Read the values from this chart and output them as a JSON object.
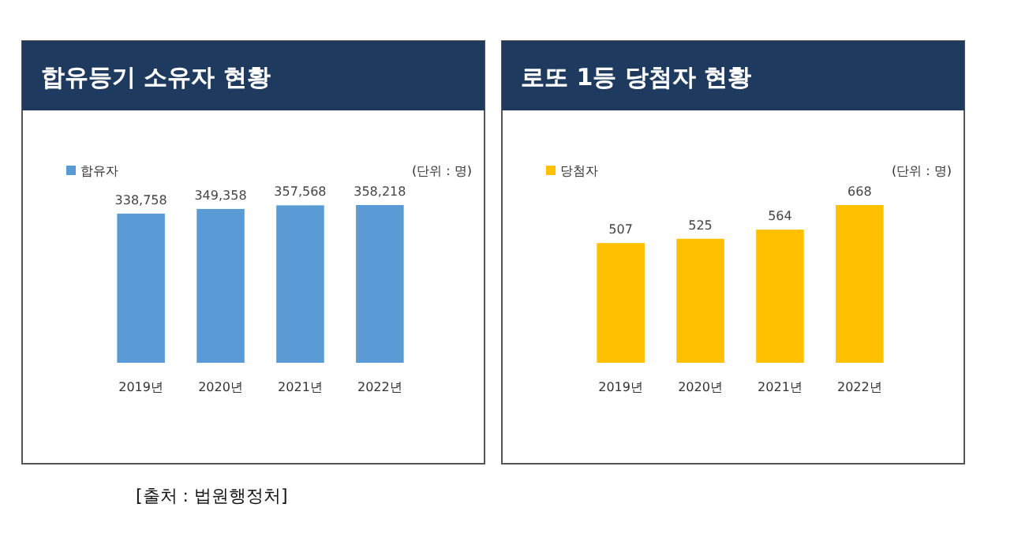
{
  "chart_data": [
    {
      "type": "bar",
      "title": "합유등기 소유자 현황",
      "categories": [
        "2019년",
        "2020년",
        "2021년",
        "2022년"
      ],
      "series": [
        {
          "name": "합유자",
          "color": "#5b9bd5",
          "values": [
            338758,
            349358,
            357568,
            358218
          ],
          "value_labels": [
            "338,758",
            "349,358",
            "357,568",
            "358,218"
          ]
        }
      ],
      "legend": "top left",
      "annotations": [
        "(단위 : 명)",
        "[출처 : 법원행정처]"
      ]
    },
    {
      "type": "bar",
      "title": "로또 1등 당첨자 현황",
      "categories": [
        "2019년",
        "2020년",
        "2021년",
        "2022년"
      ],
      "series": [
        {
          "name": "당첨자",
          "color": "#ffc000",
          "values": [
            507,
            525,
            564,
            668
          ]
        }
      ],
      "data_labels": true,
      "legend": "top left",
      "annotations": [
        "(단위 : 명)"
      ]
    }
  ]
}
